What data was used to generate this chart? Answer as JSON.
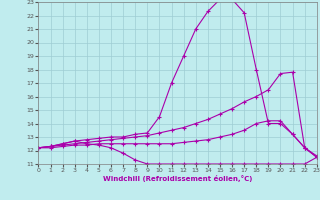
{
  "xlabel": "Windchill (Refroidissement éolien,°C)",
  "xlim": [
    0,
    23
  ],
  "ylim": [
    11,
    23
  ],
  "yticks": [
    11,
    12,
    13,
    14,
    15,
    16,
    17,
    18,
    19,
    20,
    21,
    22,
    23
  ],
  "xticks": [
    0,
    1,
    2,
    3,
    4,
    5,
    6,
    7,
    8,
    9,
    10,
    11,
    12,
    13,
    14,
    15,
    16,
    17,
    18,
    19,
    20,
    21,
    22,
    23
  ],
  "bg_color": "#c0ecee",
  "grid_color": "#9ecdd4",
  "line_color": "#aa00aa",
  "lines": [
    {
      "x": [
        0,
        1,
        2,
        3,
        4,
        5,
        6,
        7,
        8,
        9,
        10,
        11,
        12,
        13,
        14,
        15,
        16,
        17,
        18,
        19,
        20,
        21,
        22,
        23
      ],
      "y": [
        12.2,
        12.3,
        12.5,
        12.7,
        12.8,
        12.9,
        13.0,
        13.0,
        13.2,
        13.3,
        14.5,
        17.0,
        19.0,
        21.0,
        22.3,
        23.2,
        23.2,
        22.2,
        18.0,
        14.0,
        14.0,
        13.2,
        12.2,
        11.5
      ]
    },
    {
      "x": [
        0,
        1,
        2,
        3,
        4,
        5,
        6,
        7,
        8,
        9,
        10,
        11,
        12,
        13,
        14,
        15,
        16,
        17,
        18,
        19,
        20,
        21,
        22,
        23
      ],
      "y": [
        12.2,
        12.3,
        12.4,
        12.5,
        12.6,
        12.7,
        12.8,
        12.9,
        13.0,
        13.1,
        13.3,
        13.5,
        13.7,
        14.0,
        14.3,
        14.7,
        15.1,
        15.6,
        16.0,
        16.5,
        17.7,
        17.8,
        12.2,
        11.5
      ]
    },
    {
      "x": [
        0,
        1,
        2,
        3,
        4,
        5,
        6,
        7,
        8,
        9,
        10,
        11,
        12,
        13,
        14,
        15,
        16,
        17,
        18,
        19,
        20,
        21,
        22,
        23
      ],
      "y": [
        12.2,
        12.2,
        12.3,
        12.4,
        12.4,
        12.5,
        12.5,
        12.5,
        12.5,
        12.5,
        12.5,
        12.5,
        12.6,
        12.7,
        12.8,
        13.0,
        13.2,
        13.5,
        14.0,
        14.2,
        14.2,
        13.2,
        12.2,
        11.6
      ]
    },
    {
      "x": [
        0,
        1,
        2,
        3,
        4,
        5,
        6,
        7,
        8,
        9,
        10,
        11,
        12,
        13,
        14,
        15,
        16,
        17,
        18,
        19,
        20,
        21,
        22,
        23
      ],
      "y": [
        12.2,
        12.3,
        12.5,
        12.7,
        12.5,
        12.4,
        12.2,
        11.8,
        11.3,
        11.0,
        11.0,
        11.0,
        11.0,
        11.0,
        11.0,
        11.0,
        11.0,
        11.0,
        11.0,
        11.0,
        11.0,
        11.0,
        11.0,
        11.5
      ]
    }
  ]
}
